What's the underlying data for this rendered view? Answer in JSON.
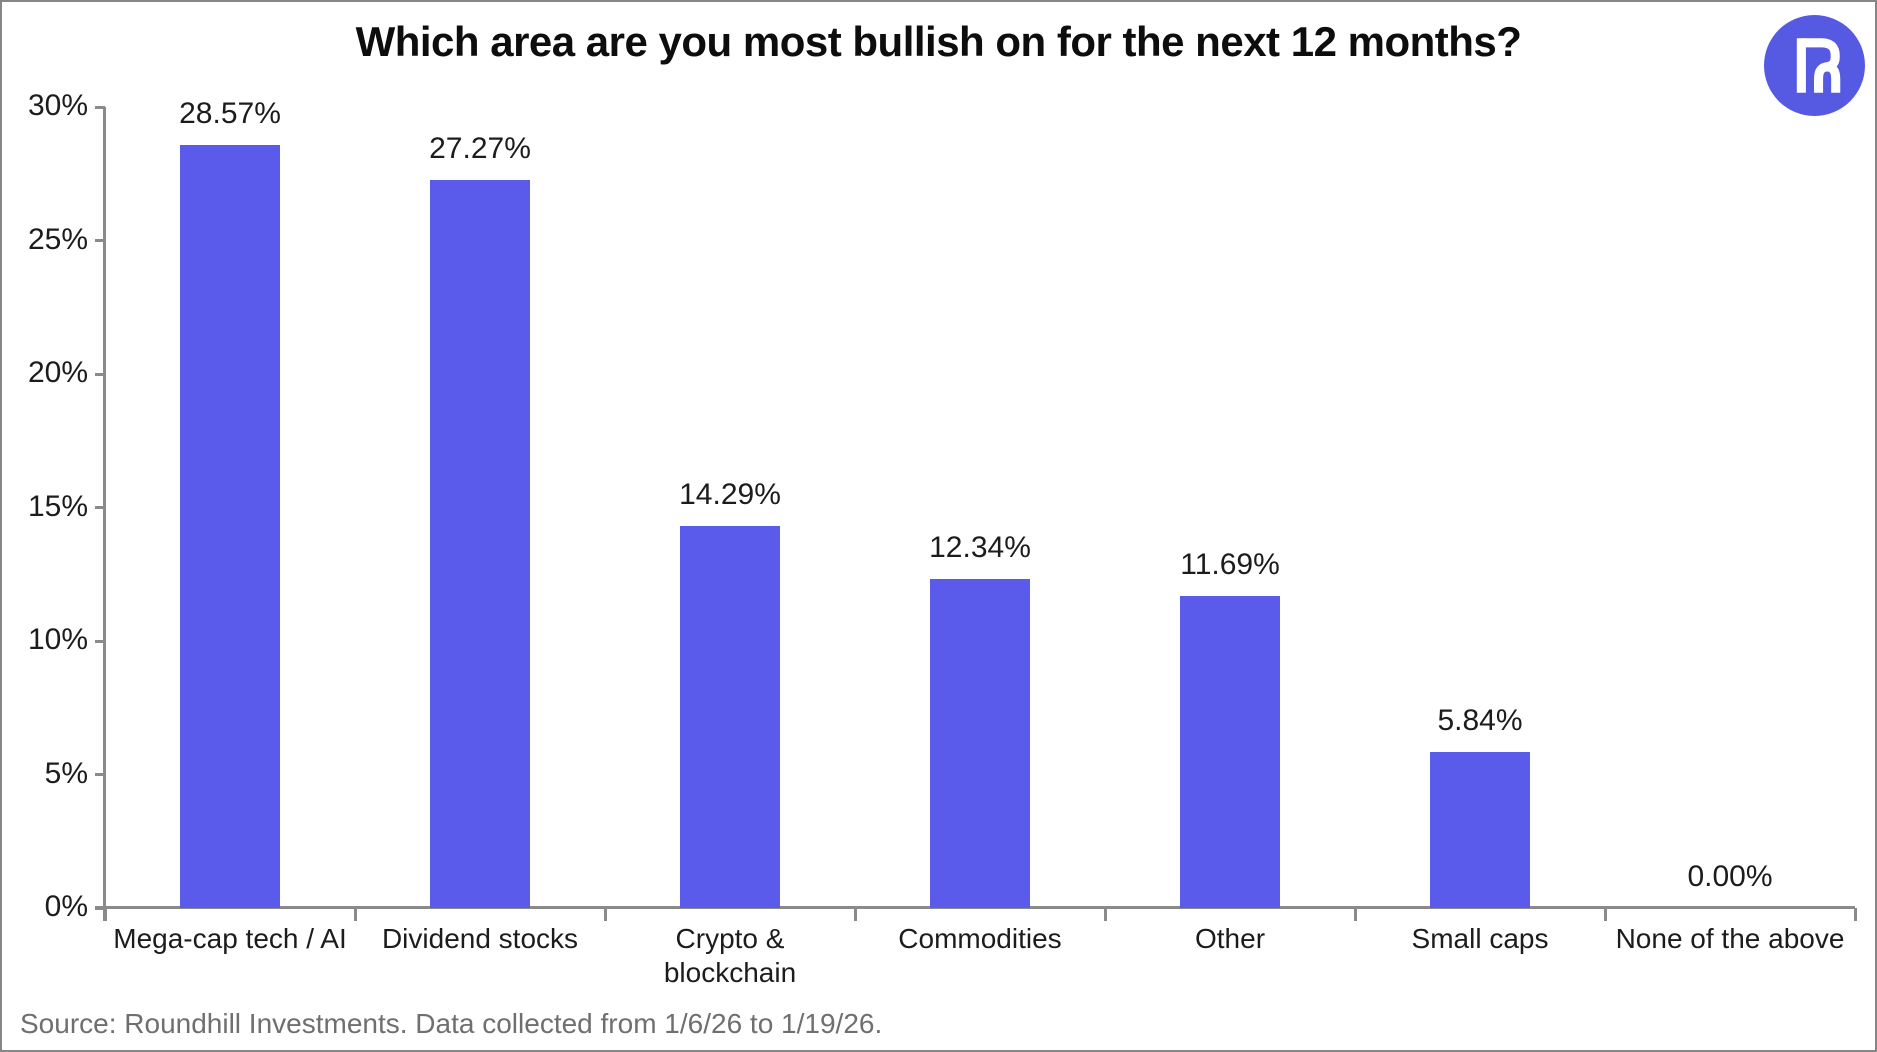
{
  "page": {
    "background": "#ffffff",
    "border_color": "#868686"
  },
  "header": {
    "logo": {
      "name": "roundhill-logo",
      "circle_color": "#565ae2",
      "mark_color": "#ffffff"
    }
  },
  "chart_data": {
    "type": "bar",
    "title": "Which area are you most bullish on for the next 12 months?",
    "categories": [
      "Mega-cap tech / AI",
      "Dividend stocks",
      "Crypto &\nblockchain",
      "Commodities",
      "Other",
      "Small caps",
      "None of the above"
    ],
    "values": [
      28.57,
      27.27,
      14.29,
      12.34,
      11.69,
      5.84,
      0
    ],
    "value_labels": [
      "28.57%",
      "27.27%",
      "14.29%",
      "12.34%",
      "11.69%",
      "5.84%",
      "0.00%"
    ],
    "xlabel": "",
    "ylabel": "",
    "ylim": [
      0,
      30
    ],
    "y_tick_labels": [
      "30%",
      "25%",
      "20%",
      "15%",
      "10%",
      "5%",
      "0%"
    ],
    "bar_color": "#5a5bea",
    "axis_color": "#8a8a8a",
    "grid": false,
    "legend": false
  },
  "footer": {
    "source": "Source: Roundhill Investments. Data collected from 1/6/26 to 1/19/26."
  }
}
